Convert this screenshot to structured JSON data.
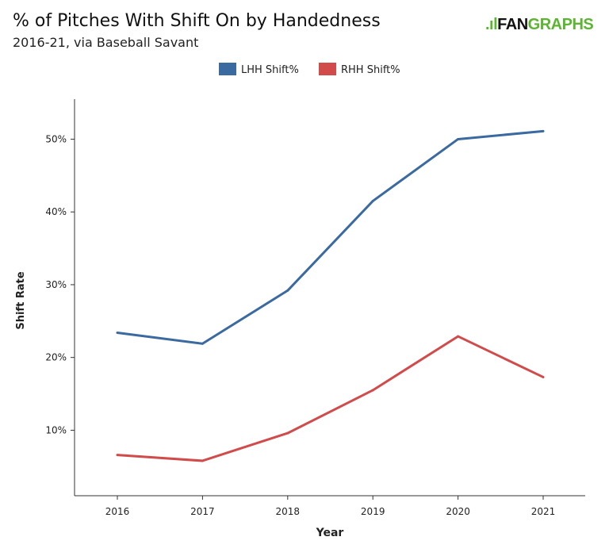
{
  "title": "% of Pitches With Shift On by Handedness",
  "subtitle": "2016-21, via Baseball Savant",
  "logo": {
    "text_fan": "FAN",
    "text_graphs": "GRAPHS",
    "brand_color": "#5cb531"
  },
  "chart_data": {
    "type": "line",
    "title": "% of Pitches With Shift On by Handedness",
    "subtitle": "2016-21, via Baseball Savant",
    "xlabel": "Year",
    "ylabel": "Shift Rate",
    "categories": [
      "2016",
      "2017",
      "2018",
      "2019",
      "2020",
      "2021"
    ],
    "ylim": [
      1,
      55.5
    ],
    "yticks": [
      10,
      20,
      30,
      40,
      50
    ],
    "ytick_labels": [
      "10%",
      "20%",
      "30%",
      "40%",
      "50%"
    ],
    "grid": false,
    "legend_placement": "top",
    "series": [
      {
        "name": "LHH Shift%",
        "color": "#3a6aa0",
        "values": [
          23.4,
          21.9,
          29.2,
          41.5,
          50.0,
          51.1
        ]
      },
      {
        "name": "RHH Shift%",
        "color": "#d24b4b",
        "values": [
          6.6,
          5.8,
          9.6,
          15.5,
          22.9,
          17.3
        ]
      }
    ]
  }
}
